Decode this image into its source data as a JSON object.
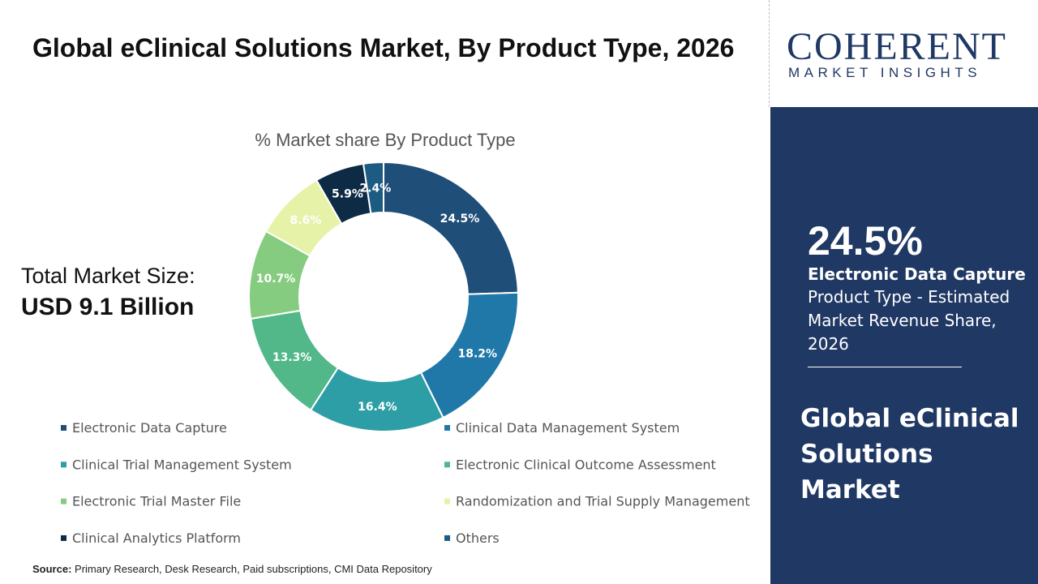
{
  "header": {
    "title": "Global eClinical Solutions Market, By Product Type, 2026"
  },
  "logo": {
    "name": "COHERENT",
    "tagline": "MARKET INSIGHTS"
  },
  "chart_data": {
    "type": "donut",
    "title": "% Market share By Product Type",
    "categories": [
      "Electronic Data Capture",
      "Clinical Data Management System",
      "Clinical Trial Management System",
      "Electronic Clinical Outcome Assessment",
      "Electronic Trial Master File",
      "Randomization and Trial Supply Management",
      "Clinical Analytics Platform",
      "Others"
    ],
    "values": [
      24.5,
      18.2,
      16.4,
      13.3,
      10.7,
      8.6,
      5.9,
      2.4
    ],
    "value_labels": [
      "24.5%",
      "18.2%",
      "16.4%",
      "13.3%",
      "10.7%",
      "8.6%",
      "5.9%",
      "2.4%"
    ],
    "colors": [
      "#1f4e79",
      "#1f78a8",
      "#2e9ea6",
      "#52b889",
      "#86cc80",
      "#e6f2a8",
      "#0e2b45",
      "#1c5b82"
    ],
    "legend": "bottom"
  },
  "total": {
    "label": "Total Market Size:",
    "value": "USD 9.1 Billion"
  },
  "side_panel": {
    "description": "Product Type - Estimated Market Revenue Share, 2026",
    "market": "Global eClinical Solutions Market"
  },
  "source": {
    "label": "Source:",
    "text": "Primary Research, Desk Research, Paid subscriptions, CMI Data Repository"
  }
}
